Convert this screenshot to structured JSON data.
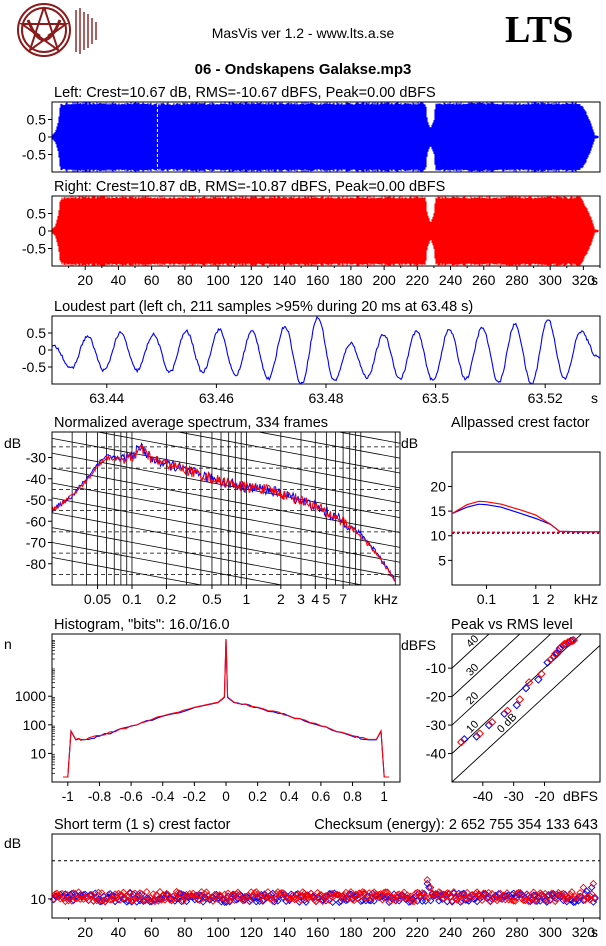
{
  "header": {
    "app_title": "MasVis ver 1.2 - www.lts.a.se",
    "brand": "LTS",
    "file_title": "06 - Ondskapens Galakse.mp3"
  },
  "colors": {
    "left": "#0000ff",
    "right": "#ff0000",
    "grid": "#000000"
  },
  "chart_data": [
    {
      "id": "left",
      "type": "area",
      "title": "Left: Crest=10.67 dB, RMS=-10.67 dBFS, Peak=0.00 dBFS",
      "yticks": [
        "0.5",
        "0",
        "-0.5"
      ],
      "ylim": [
        -1,
        1
      ],
      "xlim": [
        0,
        330
      ],
      "loudest_marker_s": 63.48,
      "envelope": {
        "t": [
          0,
          2,
          4,
          5,
          10,
          30,
          60,
          62,
          63,
          64,
          100,
          150,
          200,
          225,
          226,
          228,
          230,
          231,
          235,
          240,
          260,
          300,
          318,
          322,
          325,
          327,
          330
        ],
        "amp": [
          0.05,
          0.15,
          0.5,
          0.95,
          1.0,
          1.0,
          1.0,
          0.98,
          1.0,
          0.98,
          1.0,
          1.0,
          1.0,
          1.0,
          0.5,
          0.25,
          0.5,
          1.0,
          1.0,
          1.0,
          1.0,
          1.0,
          1.0,
          0.7,
          0.35,
          0.05,
          0.02
        ]
      }
    },
    {
      "id": "right",
      "type": "area",
      "title": "Right: Crest=10.87 dB, RMS=-10.87 dBFS, Peak=0.00 dBFS",
      "yticks": [
        "0.5",
        "0",
        "-0.5"
      ],
      "ylim": [
        -1,
        1
      ],
      "xlim": [
        0,
        330
      ],
      "xticks": [
        "20",
        "40",
        "60",
        "80",
        "100",
        "120",
        "140",
        "160",
        "180",
        "200",
        "220",
        "240",
        "260",
        "280",
        "300",
        "320"
      ],
      "xunit": "s",
      "envelope": {
        "t": [
          0,
          2,
          4,
          5,
          10,
          30,
          60,
          100,
          150,
          200,
          225,
          226,
          228,
          230,
          231,
          235,
          240,
          260,
          300,
          318,
          322,
          325,
          327,
          330
        ],
        "amp": [
          0.05,
          0.15,
          0.5,
          0.95,
          1.0,
          1.0,
          1.0,
          1.0,
          1.0,
          1.0,
          1.0,
          0.5,
          0.25,
          0.5,
          1.0,
          1.0,
          1.0,
          1.0,
          1.0,
          1.0,
          0.7,
          0.35,
          0.05,
          0.02
        ]
      }
    },
    {
      "id": "loudest",
      "type": "line",
      "title": "Loudest part (left  ch, 211 samples >95% during 20 ms at 63.48 s)",
      "yticks": [
        "0.5",
        "0",
        "-0.5"
      ],
      "ylim": [
        -1,
        1
      ],
      "xlim": [
        63.43,
        63.53
      ],
      "xticks": [
        "63.44",
        "63.46",
        "63.48",
        "63.5",
        "63.52"
      ],
      "xtick_values": [
        63.44,
        63.46,
        63.48,
        63.5,
        63.52
      ],
      "xunit": "s",
      "x": [
        63.4305,
        63.4335,
        63.4365,
        63.4395,
        63.4425,
        63.4455,
        63.4485,
        63.4515,
        63.4545,
        63.4575,
        63.4605,
        63.4635,
        63.4665,
        63.4695,
        63.4725,
        63.4755,
        63.4785,
        63.4815,
        63.4845,
        63.4875,
        63.4905,
        63.4935,
        63.4965,
        63.4995,
        63.5025,
        63.5055,
        63.5085,
        63.5115,
        63.5145,
        63.5175,
        63.5205,
        63.5235,
        63.5265,
        63.5295
      ],
      "y": [
        0.1,
        -0.55,
        0.4,
        -0.6,
        0.5,
        -0.6,
        0.45,
        -0.65,
        0.55,
        -0.65,
        0.6,
        -0.75,
        0.55,
        -0.85,
        0.7,
        -1.0,
        0.95,
        -0.9,
        0.2,
        -0.8,
        0.45,
        -0.85,
        0.55,
        -0.9,
        0.6,
        -0.85,
        0.65,
        -0.95,
        0.75,
        -1.0,
        0.9,
        -0.85,
        0.55,
        -0.2
      ]
    },
    {
      "id": "spectrum",
      "type": "line",
      "title": "Normalized average spectrum, 334 frames",
      "ylabel": "dB",
      "yticks": [
        "-30",
        "-40",
        "-50",
        "-60",
        "-70",
        "-80"
      ],
      "ytick_values": [
        -30,
        -40,
        -50,
        -60,
        -70,
        -80
      ],
      "ylim": [
        -90,
        -18
      ],
      "xlim_khz": [
        0.02,
        22
      ],
      "xscale": "log",
      "xticks": [
        "0.05",
        "0.1",
        "0.2",
        "0.5",
        "1",
        "2",
        "3",
        "4",
        "5",
        "7"
      ],
      "xtick_values": [
        0.05,
        0.1,
        0.2,
        0.5,
        1,
        2,
        3,
        4,
        5,
        7
      ],
      "xunit": "kHz",
      "series": [
        {
          "color": "#0000ff",
          "x": [
            0.02,
            0.03,
            0.04,
            0.05,
            0.06,
            0.08,
            0.1,
            0.12,
            0.15,
            0.2,
            0.3,
            0.5,
            0.7,
            1.0,
            1.5,
            2.0,
            3.0,
            4.0,
            5.0,
            7.0,
            10.0,
            14.0,
            20.0
          ],
          "y": [
            -55,
            -48,
            -40,
            -33,
            -29,
            -31,
            -29,
            -25,
            -31,
            -33,
            -36,
            -40,
            -42,
            -44,
            -45,
            -47,
            -50,
            -53,
            -56,
            -60,
            -66,
            -75,
            -88
          ]
        },
        {
          "color": "#ff0000",
          "x": [
            0.02,
            0.03,
            0.04,
            0.05,
            0.06,
            0.08,
            0.1,
            0.12,
            0.15,
            0.2,
            0.3,
            0.5,
            0.7,
            1.0,
            1.5,
            2.0,
            3.0,
            4.0,
            5.0,
            7.0,
            10.0,
            14.0,
            20.0
          ],
          "y": [
            -55,
            -48,
            -41,
            -34,
            -30,
            -31,
            -30,
            -26,
            -31,
            -33,
            -36,
            -40,
            -42,
            -44,
            -45,
            -47,
            -50,
            -53,
            -56,
            -60,
            -67,
            -76,
            -88
          ]
        }
      ]
    },
    {
      "id": "allpass",
      "type": "line",
      "title": "Allpassed crest factor",
      "ylabel": "dB",
      "yticks": [
        "20",
        "15",
        "10",
        "5"
      ],
      "ytick_values": [
        20,
        15,
        10,
        5
      ],
      "ylim": [
        0,
        27
      ],
      "xlim_khz": [
        0.02,
        20
      ],
      "xscale": "log",
      "xticks": [
        "0.1",
        "1",
        "2"
      ],
      "xtick_values": [
        0.1,
        1,
        2
      ],
      "xunit": "kHz",
      "reference_db": 10.7,
      "series": [
        {
          "color": "#0000ff",
          "x": [
            0.02,
            0.04,
            0.07,
            0.1,
            0.2,
            0.5,
            1.0,
            2.0,
            3.0,
            10.0,
            20.0
          ],
          "y": [
            14.5,
            15.8,
            16.4,
            16.3,
            15.8,
            14.5,
            13.5,
            12.3,
            10.9,
            10.8,
            10.8
          ]
        },
        {
          "color": "#ff0000",
          "x": [
            0.02,
            0.04,
            0.07,
            0.1,
            0.2,
            0.5,
            1.0,
            2.0,
            3.0,
            10.0,
            20.0
          ],
          "y": [
            14.5,
            16.3,
            17.0,
            16.9,
            16.4,
            15.2,
            14.2,
            12.3,
            10.9,
            10.8,
            10.8
          ]
        }
      ]
    },
    {
      "id": "histogram",
      "type": "line",
      "title": "Histogram, \"bits\": 16.0/16.0",
      "ylabel": "n",
      "yscale": "log",
      "yticks": [
        "1000",
        "100",
        "10"
      ],
      "ytick_values": [
        1000,
        100,
        10
      ],
      "ylim": [
        1,
        150000
      ],
      "xlim": [
        -1.1,
        1.1
      ],
      "xticks": [
        "-1",
        "-0.8",
        "-0.6",
        "-0.4",
        "-0.2",
        "0",
        "0.2",
        "0.4",
        "0.6",
        "0.8",
        "1"
      ],
      "xtick_values": [
        -1,
        -0.8,
        -0.6,
        -0.4,
        -0.2,
        0,
        0.2,
        0.4,
        0.6,
        0.8,
        1
      ],
      "series": [
        {
          "color": "#0000ff",
          "x": [
            -1.03,
            -1.0,
            -0.98,
            -0.95,
            -0.9,
            -0.8,
            -0.6,
            -0.4,
            -0.2,
            -0.05,
            -0.01,
            0,
            0.01,
            0.05,
            0.2,
            0.4,
            0.6,
            0.8,
            0.9,
            0.95,
            0.98,
            1.0,
            1.03
          ],
          "y": [
            1.5,
            1.5,
            60,
            30,
            30,
            40,
            90,
            200,
            400,
            600,
            900,
            100000,
            900,
            600,
            400,
            200,
            90,
            40,
            30,
            30,
            60,
            1.5,
            1.5
          ]
        },
        {
          "color": "#ff0000",
          "x": [
            -1.03,
            -1.0,
            -0.98,
            -0.95,
            -0.9,
            -0.8,
            -0.6,
            -0.4,
            -0.2,
            -0.05,
            -0.01,
            0,
            0.01,
            0.05,
            0.2,
            0.4,
            0.6,
            0.8,
            0.9,
            0.95,
            0.98,
            1.0,
            1.03
          ],
          "y": [
            1.5,
            1.5,
            62,
            31,
            31,
            42,
            92,
            205,
            410,
            620,
            950,
            100000,
            950,
            620,
            410,
            205,
            92,
            42,
            31,
            31,
            62,
            1.5,
            1.5
          ]
        }
      ]
    },
    {
      "id": "peakrms",
      "type": "scatter",
      "title": "Peak vs RMS level",
      "ylabel": "dBFS",
      "xlabel": "dBFS",
      "yticks": [
        "-10",
        "-20",
        "-30",
        "-40"
      ],
      "ytick_values": [
        -10,
        -20,
        -30,
        -40
      ],
      "xticks": [
        "-40",
        "-30",
        "-20"
      ],
      "xtick_values": [
        -40,
        -30,
        -20
      ],
      "xlim": [
        -50,
        -2
      ],
      "ylim": [
        -50,
        2
      ],
      "crest_lines": [
        "40",
        "30",
        "20",
        "10",
        "0 dB"
      ],
      "crest_values": [
        40,
        30,
        20,
        10,
        0
      ],
      "series": [
        {
          "color": "#0000ff",
          "x": [
            -46,
            -42,
            -38,
            -33,
            -29,
            -26,
            -22,
            -19,
            -17,
            -16,
            -15,
            -14,
            -13,
            -12,
            -11.5,
            -11
          ],
          "y": [
            -35,
            -34,
            -30,
            -26,
            -23,
            -17,
            -14,
            -8,
            -6,
            -5,
            -3,
            -2,
            -1.5,
            -1,
            -0.5,
            -0.3
          ]
        },
        {
          "color": "#ff0000",
          "x": [
            -47,
            -41,
            -37,
            -32,
            -28,
            -25,
            -21,
            -18,
            -16.5,
            -15.5,
            -14.5,
            -13.5,
            -12.5,
            -12,
            -11,
            -10.5
          ],
          "y": [
            -36,
            -33,
            -29,
            -25,
            -21,
            -15,
            -12,
            -7,
            -5,
            -4,
            -2.5,
            -1.5,
            -1,
            -0.8,
            -0.4,
            -0.2
          ]
        }
      ]
    },
    {
      "id": "shortcrest",
      "type": "scatter",
      "title": "Short term (1 s) crest factor",
      "checksum": "Checksum (energy):  2 652 755 354 133 643",
      "ylabel": "dB",
      "yticks": [
        "10"
      ],
      "ytick_values": [
        10
      ],
      "ylim": [
        5,
        27
      ],
      "xlim": [
        0,
        330
      ],
      "xticks": [
        "20",
        "40",
        "60",
        "80",
        "100",
        "120",
        "140",
        "160",
        "180",
        "200",
        "220",
        "240",
        "260",
        "280",
        "300",
        "320"
      ],
      "xtick_values": [
        20,
        40,
        60,
        80,
        100,
        120,
        140,
        160,
        180,
        200,
        220,
        240,
        260,
        280,
        300,
        320
      ],
      "xunit": "s",
      "reference_db": 20,
      "series": [
        {
          "color": "#0000ff",
          "baseline": 10.3,
          "spread": 1.2,
          "spikes_t": [
            226,
            227,
            322,
            325,
            328
          ],
          "spikes_y": [
            14,
            13,
            12,
            13,
            15
          ]
        },
        {
          "color": "#ff0000",
          "baseline": 10.6,
          "spread": 1.3,
          "spikes_t": [
            226,
            228,
            320,
            326,
            329
          ],
          "spikes_y": [
            15,
            13,
            13,
            14,
            17
          ]
        }
      ]
    }
  ]
}
